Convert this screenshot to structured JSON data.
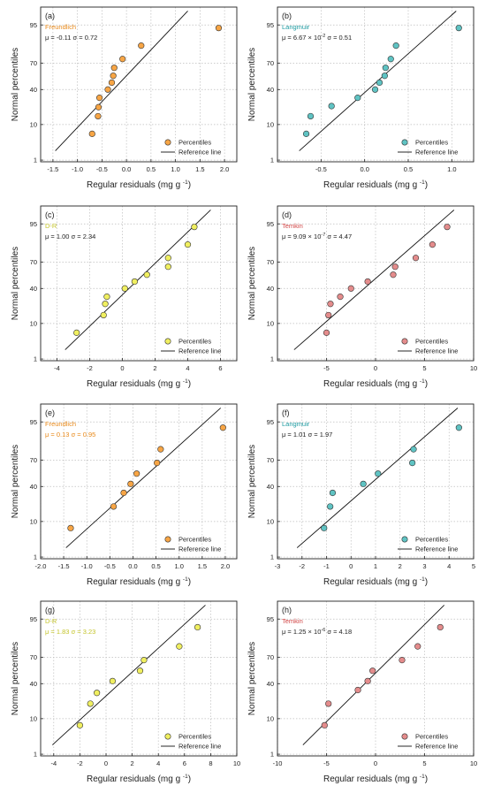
{
  "figure": {
    "y_prob_ticks": [
      1,
      10,
      40,
      70,
      95
    ],
    "colors": {
      "orange": "#f7a545",
      "orange_label": "#e8891a",
      "teal": "#5fc3c3",
      "teal_label": "#1d9aa0",
      "yellow": "#f0ef60",
      "yellow_label": "#c4c42a",
      "red": "#e48c8c",
      "red_label": "#d14545",
      "line": "#111111",
      "grid": "#bdbdbd",
      "frame": "#222222"
    }
  },
  "chart_data": [
    {
      "type": "scatter",
      "panel": "(a)",
      "model": "Freundlich",
      "stats_mu": "-0.11",
      "stats_sigma": "0.72",
      "xlabel_main": "Regular residuals (mg g",
      "xlabel_sup": "-1",
      "ylabel": "Normal percentiles",
      "xlim": [
        -1.75,
        2.25
      ],
      "x_ticks": [
        -1.5,
        -1.0,
        -0.5,
        0.0,
        0.5,
        1.0,
        1.5,
        2.0
      ],
      "x_tick_labels": [
        "-1.5",
        "-1.0",
        "-0.5",
        "0.0",
        "0.5",
        "1.0",
        "1.5",
        "2.0"
      ],
      "color": "orange",
      "points": [
        {
          "x": -0.7,
          "y": 6
        },
        {
          "x": -0.58,
          "y": 15
        },
        {
          "x": -0.57,
          "y": 22
        },
        {
          "x": -0.55,
          "y": 31
        },
        {
          "x": -0.38,
          "y": 40
        },
        {
          "x": -0.3,
          "y": 48
        },
        {
          "x": -0.27,
          "y": 56
        },
        {
          "x": -0.25,
          "y": 65
        },
        {
          "x": -0.08,
          "y": 74
        },
        {
          "x": 0.3,
          "y": 85
        },
        {
          "x": 1.88,
          "y": 94
        }
      ],
      "ref_line": {
        "x": [
          -1.45,
          1.25
        ],
        "y": [
          2,
          98
        ]
      },
      "legend": {
        "marker": "Percentiles",
        "line": "Reference line"
      }
    },
    {
      "type": "scatter",
      "panel": "(b)",
      "model": "Langmuir",
      "stats_mu": "6.67 × 10",
      "stats_mu_sup": "-2",
      "stats_sigma": "0.51",
      "xlabel_main": "Regular residuals (mg g",
      "xlabel_sup": "-1",
      "ylabel": "Normal percentiles",
      "xlim": [
        -1.0,
        1.25
      ],
      "x_ticks": [
        -0.5,
        0.0,
        0.5,
        1.0
      ],
      "x_tick_labels": [
        "-0.5",
        "0.0",
        "0.5",
        "1.0"
      ],
      "color": "teal",
      "points": [
        {
          "x": -0.67,
          "y": 6
        },
        {
          "x": -0.62,
          "y": 15
        },
        {
          "x": -0.38,
          "y": 23
        },
        {
          "x": -0.08,
          "y": 31
        },
        {
          "x": 0.12,
          "y": 40
        },
        {
          "x": 0.17,
          "y": 48
        },
        {
          "x": 0.23,
          "y": 56
        },
        {
          "x": 0.24,
          "y": 65
        },
        {
          "x": 0.3,
          "y": 74
        },
        {
          "x": 0.36,
          "y": 85
        },
        {
          "x": 1.08,
          "y": 94
        }
      ],
      "ref_line": {
        "x": [
          -0.75,
          1.05
        ],
        "y": [
          2,
          98
        ]
      },
      "legend": {
        "marker": "Percentiles",
        "line": "Reference line"
      }
    },
    {
      "type": "scatter",
      "panel": "(c)",
      "model": "D-R",
      "stats_mu": "1.00",
      "stats_sigma": "2.34",
      "xlabel_main": "Regular residuals (mg g",
      "xlabel_sup": "-1",
      "ylabel": "Normal percentiles",
      "xlim": [
        -5,
        7
      ],
      "x_ticks": [
        -4,
        -2,
        0,
        2,
        4,
        6
      ],
      "x_tick_labels": [
        "-4",
        "-2",
        "0",
        "2",
        "4",
        "6"
      ],
      "color": "yellow",
      "points": [
        {
          "x": -2.8,
          "y": 6
        },
        {
          "x": -1.15,
          "y": 15
        },
        {
          "x": -1.05,
          "y": 24
        },
        {
          "x": -0.95,
          "y": 31
        },
        {
          "x": 0.15,
          "y": 40
        },
        {
          "x": 0.75,
          "y": 48
        },
        {
          "x": 1.5,
          "y": 56
        },
        {
          "x": 2.8,
          "y": 65
        },
        {
          "x": 2.8,
          "y": 74
        },
        {
          "x": 4.0,
          "y": 85
        },
        {
          "x": 4.4,
          "y": 94
        }
      ],
      "ref_line": {
        "x": [
          -3.5,
          5.4
        ],
        "y": [
          2,
          98
        ]
      },
      "legend": {
        "marker": "Percentiles",
        "line": "Reference line"
      }
    },
    {
      "type": "scatter",
      "panel": "(d)",
      "model": "Temkin",
      "stats_mu": "9.09 × 10",
      "stats_mu_sup": "-7",
      "stats_sigma": "4.47",
      "xlabel_main": "Regular residuals (mg g",
      "xlabel_sup": "-1",
      "ylabel": "Normal percentiles",
      "xlim": [
        -10,
        10
      ],
      "x_ticks": [
        -5,
        0,
        5,
        10
      ],
      "x_tick_labels": [
        "-5",
        "0",
        "5",
        "10"
      ],
      "color": "red",
      "points": [
        {
          "x": -5.0,
          "y": 6
        },
        {
          "x": -4.8,
          "y": 15
        },
        {
          "x": -4.6,
          "y": 24
        },
        {
          "x": -3.6,
          "y": 31
        },
        {
          "x": -2.5,
          "y": 40
        },
        {
          "x": -0.8,
          "y": 48
        },
        {
          "x": 1.8,
          "y": 56
        },
        {
          "x": 2.0,
          "y": 65
        },
        {
          "x": 4.1,
          "y": 74
        },
        {
          "x": 5.8,
          "y": 85
        },
        {
          "x": 7.3,
          "y": 94
        }
      ],
      "ref_line": {
        "x": [
          -8.3,
          8.0
        ],
        "y": [
          2,
          98
        ]
      },
      "legend": {
        "marker": "Percentiles",
        "line": "Reference line"
      }
    },
    {
      "type": "scatter",
      "panel": "(e)",
      "model": "Freundlich",
      "stats_mu": "0.13",
      "stats_sigma": "0.95",
      "xlabel_main": "Regular residuals (mg g",
      "xlabel_sup": "-1",
      "ylabel": "Normal percentiles",
      "xlim": [
        -2.0,
        2.25
      ],
      "x_ticks": [
        -2.0,
        -1.5,
        -1.0,
        -0.5,
        0.0,
        0.5,
        1.0,
        1.5,
        2.0
      ],
      "x_tick_labels": [
        "-2.0",
        "-1.5",
        "-1.0",
        "-0.5",
        "0.0",
        "0.5",
        "1.0",
        "1.5",
        "2.0"
      ],
      "color": "orange",
      "points": [
        {
          "x": -1.35,
          "y": 7
        },
        {
          "x": -0.42,
          "y": 20
        },
        {
          "x": -0.2,
          "y": 33
        },
        {
          "x": -0.05,
          "y": 43
        },
        {
          "x": 0.08,
          "y": 55
        },
        {
          "x": 0.52,
          "y": 67
        },
        {
          "x": 0.6,
          "y": 80
        },
        {
          "x": 1.95,
          "y": 93
        }
      ],
      "ref_line": {
        "x": [
          -1.45,
          1.9
        ],
        "y": [
          2,
          98
        ]
      },
      "legend": {
        "marker": "Percentiles",
        "line": "Reference line"
      }
    },
    {
      "type": "scatter",
      "panel": "(f)",
      "model": "Langmuir",
      "stats_mu": "1.01",
      "stats_sigma": "1.97",
      "xlabel_main": "Regular residuals (mg g",
      "xlabel_sup": "-1",
      "ylabel": "Normal percentiles",
      "xlim": [
        -3,
        5
      ],
      "x_ticks": [
        -3,
        -2,
        -1,
        0,
        1,
        2,
        3,
        4,
        5
      ],
      "x_tick_labels": [
        "-3",
        "-2",
        "-1",
        "0",
        "1",
        "2",
        "3",
        "4",
        "5"
      ],
      "color": "teal",
      "points": [
        {
          "x": -1.1,
          "y": 7
        },
        {
          "x": -0.85,
          "y": 20
        },
        {
          "x": -0.75,
          "y": 33
        },
        {
          "x": 0.5,
          "y": 43
        },
        {
          "x": 1.1,
          "y": 55
        },
        {
          "x": 2.5,
          "y": 67
        },
        {
          "x": 2.55,
          "y": 80
        },
        {
          "x": 4.4,
          "y": 93
        }
      ],
      "ref_line": {
        "x": [
          -2.2,
          4.35
        ],
        "y": [
          2,
          98
        ]
      },
      "legend": {
        "marker": "Percentiles",
        "line": "Reference line"
      }
    },
    {
      "type": "scatter",
      "panel": "(g)",
      "model": "D-R",
      "stats_mu": "1.83",
      "stats_sigma": "3.23",
      "xlabel_main": "Regular residuals (mg g",
      "xlabel_sup": "-1",
      "ylabel": "Normal percentiles",
      "xlim": [
        -5,
        10
      ],
      "x_ticks": [
        -4,
        -2,
        0,
        2,
        4,
        6,
        8,
        10
      ],
      "x_tick_labels": [
        "-4",
        "-2",
        "0",
        "2",
        "4",
        "6",
        "8",
        "10"
      ],
      "color": "yellow",
      "points": [
        {
          "x": -2.0,
          "y": 7
        },
        {
          "x": -1.2,
          "y": 20
        },
        {
          "x": -0.7,
          "y": 30
        },
        {
          "x": 0.5,
          "y": 43
        },
        {
          "x": 2.6,
          "y": 55
        },
        {
          "x": 2.9,
          "y": 67
        },
        {
          "x": 5.6,
          "y": 80
        },
        {
          "x": 7.0,
          "y": 92
        }
      ],
      "ref_line": {
        "x": [
          -4.1,
          7.6
        ],
        "y": [
          2,
          98
        ]
      },
      "legend": {
        "marker": "Percentiles",
        "line": "Reference line"
      }
    },
    {
      "type": "scatter",
      "panel": "(h)",
      "model": "Temkin",
      "stats_mu": "1.25 × 10",
      "stats_mu_sup": "-6",
      "stats_sigma": "4.18",
      "xlabel_main": "Regular residuals (mg g",
      "xlabel_sup": "-1",
      "ylabel": "Normal percentiles",
      "xlim": [
        -10,
        10
      ],
      "x_ticks": [
        -10,
        -5,
        0,
        5,
        10
      ],
      "x_tick_labels": [
        "-10",
        "-5",
        "0",
        "5",
        "10"
      ],
      "color": "red",
      "points": [
        {
          "x": -5.2,
          "y": 7
        },
        {
          "x": -4.8,
          "y": 20
        },
        {
          "x": -1.8,
          "y": 33
        },
        {
          "x": -0.8,
          "y": 43
        },
        {
          "x": -0.3,
          "y": 55
        },
        {
          "x": 2.7,
          "y": 67
        },
        {
          "x": 4.3,
          "y": 80
        },
        {
          "x": 6.6,
          "y": 92
        }
      ],
      "ref_line": {
        "x": [
          -7.4,
          7.0
        ],
        "y": [
          2,
          98
        ]
      },
      "legend": {
        "marker": "Percentiles",
        "line": "Reference line"
      }
    }
  ]
}
